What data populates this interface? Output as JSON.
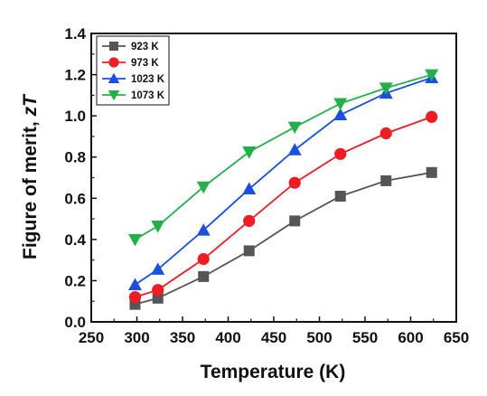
{
  "chart_data": {
    "type": "line",
    "xlabel": "Temperature (K)",
    "ylabel_prefix": "Figure of merit, ",
    "ylabel_italic": "zT",
    "xlim": [
      250,
      650
    ],
    "ylim": [
      0.0,
      1.4
    ],
    "xticks": [
      250,
      300,
      350,
      400,
      450,
      500,
      550,
      600,
      650
    ],
    "xtick_labels": [
      "250",
      "300",
      "350",
      "400",
      "450",
      "500",
      "550",
      "600",
      "650"
    ],
    "yticks": [
      0.0,
      0.2,
      0.4,
      0.6,
      0.8,
      1.0,
      1.2,
      1.4
    ],
    "ytick_labels": [
      "0.0",
      "0.2",
      "0.4",
      "0.6",
      "0.8",
      "1.0",
      "1.2",
      "1.4"
    ],
    "grid": false,
    "legend_position": "top-left",
    "x": [
      298,
      323,
      373,
      423,
      473,
      523,
      573,
      623
    ],
    "series": [
      {
        "name": "923 K",
        "marker": "square",
        "color": "#555555",
        "values": [
          0.085,
          0.115,
          0.22,
          0.345,
          0.49,
          0.61,
          0.685,
          0.725
        ]
      },
      {
        "name": "973 K",
        "marker": "circle",
        "color": "#ee1c25",
        "values": [
          0.12,
          0.155,
          0.305,
          0.49,
          0.675,
          0.815,
          0.915,
          0.995
        ]
      },
      {
        "name": "1023 K",
        "marker": "triangle-up",
        "color": "#1a4fe0",
        "values": [
          0.18,
          0.255,
          0.445,
          0.645,
          0.835,
          1.005,
          1.11,
          1.185
        ]
      },
      {
        "name": "1073 K",
        "marker": "triangle-down",
        "color": "#23b04a",
        "values": [
          0.4,
          0.465,
          0.655,
          0.825,
          0.945,
          1.06,
          1.135,
          1.2
        ]
      }
    ]
  }
}
